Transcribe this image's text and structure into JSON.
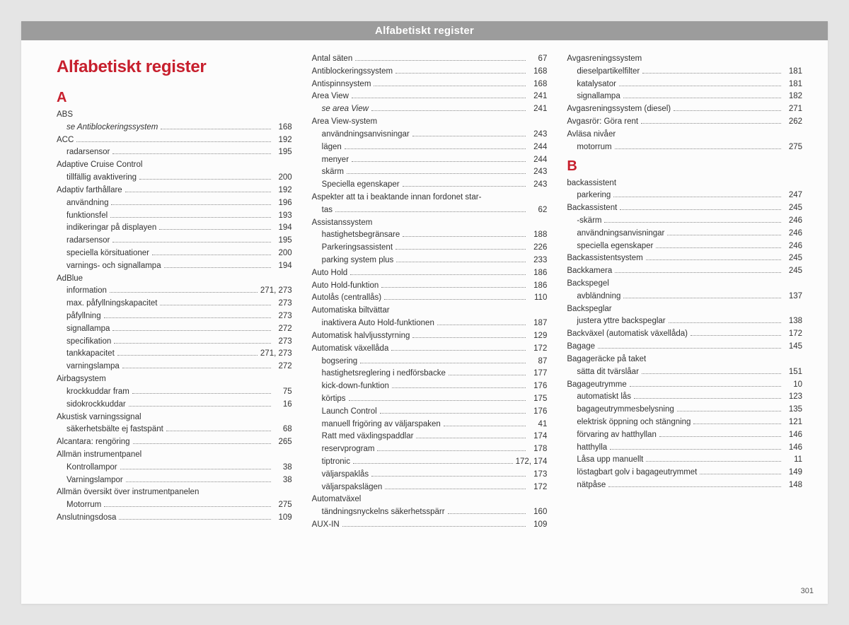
{
  "header": "Alfabetiskt register",
  "title": "Alfabetiskt register",
  "page_number": "301",
  "colors": {
    "page_bg": "#e5e5e5",
    "sheet_bg": "#fcfcfc",
    "bar_bg": "#9c9c9c",
    "bar_text": "#ffffff",
    "accent": "#c71f2d",
    "body_text": "#333333",
    "dots": "#888888"
  },
  "columns": [
    {
      "blocks": [
        {
          "type": "title"
        },
        {
          "type": "letter",
          "text": "A"
        },
        {
          "type": "entries",
          "items": [
            {
              "label": "ABS",
              "page": "",
              "nopage": true
            },
            {
              "label": "se Antiblockeringssystem",
              "page": "168",
              "sub": true,
              "italic": true
            },
            {
              "label": "ACC",
              "page": "192"
            },
            {
              "label": "radarsensor",
              "page": "195",
              "sub": true
            },
            {
              "label": "Adaptive Cruise Control",
              "page": "",
              "nopage": true
            },
            {
              "label": "tillfällig avaktivering",
              "page": "200",
              "sub": true
            },
            {
              "label": "Adaptiv farthållare",
              "page": "192"
            },
            {
              "label": "användning",
              "page": "196",
              "sub": true
            },
            {
              "label": "funktionsfel",
              "page": "193",
              "sub": true
            },
            {
              "label": "indikeringar på displayen",
              "page": "194",
              "sub": true
            },
            {
              "label": "radarsensor",
              "page": "195",
              "sub": true
            },
            {
              "label": "speciella körsituationer",
              "page": "200",
              "sub": true
            },
            {
              "label": "varnings- och signallampa",
              "page": "194",
              "sub": true
            },
            {
              "label": "AdBlue",
              "page": "",
              "nopage": true
            },
            {
              "label": "information",
              "page": "271, 273",
              "sub": true
            },
            {
              "label": "max. påfyllningskapacitet",
              "page": "273",
              "sub": true
            },
            {
              "label": "påfyllning",
              "page": "273",
              "sub": true
            },
            {
              "label": "signallampa",
              "page": "272",
              "sub": true
            },
            {
              "label": "specifikation",
              "page": "273",
              "sub": true
            },
            {
              "label": "tankkapacitet",
              "page": "271, 273",
              "sub": true
            },
            {
              "label": "varningslampa",
              "page": "272",
              "sub": true
            },
            {
              "label": "Airbagsystem",
              "page": "",
              "nopage": true
            },
            {
              "label": "krockkuddar fram",
              "page": "75",
              "sub": true
            },
            {
              "label": "sidokrockkuddar",
              "page": "16",
              "sub": true
            },
            {
              "label": "Akustisk varningssignal",
              "page": "",
              "nopage": true
            },
            {
              "label": "säkerhetsbälte ej fastspänt",
              "page": "68",
              "sub": true
            },
            {
              "label": "Alcantara: rengöring",
              "page": "265"
            },
            {
              "label": "Allmän instrumentpanel",
              "page": "",
              "nopage": true
            },
            {
              "label": "Kontrollampor",
              "page": "38",
              "sub": true
            },
            {
              "label": "Varningslampor",
              "page": "38",
              "sub": true
            },
            {
              "label": "Allmän översikt över instrumentpanelen",
              "page": "",
              "nopage": true
            },
            {
              "label": "Motorrum",
              "page": "275",
              "sub": true
            },
            {
              "label": "Anslutningsdosa",
              "page": "109"
            }
          ]
        }
      ]
    },
    {
      "blocks": [
        {
          "type": "entries",
          "items": [
            {
              "label": "Antal säten",
              "page": "67"
            },
            {
              "label": "Antiblockeringssystem",
              "page": "168"
            },
            {
              "label": "Antispinnsystem",
              "page": "168"
            },
            {
              "label": "Area View",
              "page": "241"
            },
            {
              "label": "se area View",
              "page": "241",
              "sub": true,
              "italic": true
            },
            {
              "label": "Area View-system",
              "page": "",
              "nopage": true
            },
            {
              "label": "användningsanvisningar",
              "page": "243",
              "sub": true
            },
            {
              "label": "lägen",
              "page": "244",
              "sub": true
            },
            {
              "label": "menyer",
              "page": "244",
              "sub": true
            },
            {
              "label": "skärm",
              "page": "243",
              "sub": true
            },
            {
              "label": "Speciella egenskaper",
              "page": "243",
              "sub": true
            },
            {
              "label": "Aspekter att ta i beaktande innan fordonet star-",
              "page": "",
              "nopage": true
            },
            {
              "label": "tas",
              "page": "62",
              "sub": true
            },
            {
              "label": "Assistanssystem",
              "page": "",
              "nopage": true
            },
            {
              "label": "hastighetsbegränsare",
              "page": "188",
              "sub": true
            },
            {
              "label": "Parkeringsassistent",
              "page": "226",
              "sub": true
            },
            {
              "label": "parking system plus",
              "page": "233",
              "sub": true
            },
            {
              "label": "Auto Hold",
              "page": "186"
            },
            {
              "label": "Auto Hold-funktion",
              "page": "186"
            },
            {
              "label": "Autolås (centrallås)",
              "page": "110"
            },
            {
              "label": "Automatiska biltvättar",
              "page": "",
              "nopage": true
            },
            {
              "label": "inaktivera Auto Hold-funktionen",
              "page": "187",
              "sub": true
            },
            {
              "label": "Automatisk halvljusstyrning",
              "page": "129"
            },
            {
              "label": "Automatisk växellåda",
              "page": "172"
            },
            {
              "label": "bogsering",
              "page": "87",
              "sub": true
            },
            {
              "label": "hastighetsreglering i nedförsbacke",
              "page": "177",
              "sub": true
            },
            {
              "label": "kick-down-funktion",
              "page": "176",
              "sub": true
            },
            {
              "label": "körtips",
              "page": "175",
              "sub": true
            },
            {
              "label": "Launch Control",
              "page": "176",
              "sub": true
            },
            {
              "label": "manuell frigöring av väljarspaken",
              "page": "41",
              "sub": true
            },
            {
              "label": "Ratt med växlingspaddlar",
              "page": "174",
              "sub": true
            },
            {
              "label": "reservprogram",
              "page": "178",
              "sub": true
            },
            {
              "label": "tiptronic",
              "page": "172, 174",
              "sub": true
            },
            {
              "label": "väljarspaklås",
              "page": "173",
              "sub": true
            },
            {
              "label": "väljarspakslägen",
              "page": "172",
              "sub": true
            },
            {
              "label": "Automatväxel",
              "page": "",
              "nopage": true
            },
            {
              "label": "tändningsnyckelns säkerhetsspärr",
              "page": "160",
              "sub": true
            },
            {
              "label": "AUX-IN",
              "page": "109"
            }
          ]
        }
      ]
    },
    {
      "blocks": [
        {
          "type": "entries",
          "items": [
            {
              "label": "Avgasreningssystem",
              "page": "",
              "nopage": true
            },
            {
              "label": "dieselpartikelfilter",
              "page": "181",
              "sub": true
            },
            {
              "label": "katalysator",
              "page": "181",
              "sub": true
            },
            {
              "label": "signallampa",
              "page": "182",
              "sub": true
            },
            {
              "label": "Avgasreningssystem (diesel)",
              "page": "271"
            },
            {
              "label": "Avgasrör: Göra rent",
              "page": "262"
            },
            {
              "label": "Avläsa nivåer",
              "page": "",
              "nopage": true
            },
            {
              "label": "motorrum",
              "page": "275",
              "sub": true
            }
          ]
        },
        {
          "type": "letter",
          "text": "B"
        },
        {
          "type": "entries",
          "items": [
            {
              "label": "backassistent",
              "page": "",
              "nopage": true
            },
            {
              "label": "parkering",
              "page": "247",
              "sub": true
            },
            {
              "label": "Backassistent",
              "page": "245"
            },
            {
              "label": "-skärm",
              "page": "246",
              "sub": true
            },
            {
              "label": "användningsanvisningar",
              "page": "246",
              "sub": true
            },
            {
              "label": "speciella egenskaper",
              "page": "246",
              "sub": true
            },
            {
              "label": "Backassistentsystem",
              "page": "245"
            },
            {
              "label": "Backkamera",
              "page": "245"
            },
            {
              "label": "Backspegel",
              "page": "",
              "nopage": true
            },
            {
              "label": "avbländning",
              "page": "137",
              "sub": true
            },
            {
              "label": "Backspeglar",
              "page": "",
              "nopage": true
            },
            {
              "label": "justera yttre backspeglar",
              "page": "138",
              "sub": true
            },
            {
              "label": "Backväxel (automatisk växellåda)",
              "page": "172"
            },
            {
              "label": "Bagage",
              "page": "145"
            },
            {
              "label": "Bagageräcke på taket",
              "page": "",
              "nopage": true
            },
            {
              "label": "sätta dit tvärslåar",
              "page": "151",
              "sub": true
            },
            {
              "label": "Bagageutrymme",
              "page": "10"
            },
            {
              "label": "automatiskt lås",
              "page": "123",
              "sub": true
            },
            {
              "label": "bagageutrymmesbelysning",
              "page": "135",
              "sub": true
            },
            {
              "label": "elektrisk öppning och stängning",
              "page": "121",
              "sub": true
            },
            {
              "label": "förvaring av hatthyllan",
              "page": "146",
              "sub": true
            },
            {
              "label": "hatthylla",
              "page": "146",
              "sub": true
            },
            {
              "label": "Låsa upp manuellt",
              "page": "11",
              "sub": true
            },
            {
              "label": "löstagbart golv i bagageutrymmet",
              "page": "149",
              "sub": true
            },
            {
              "label": "nätpåse",
              "page": "148",
              "sub": true
            }
          ]
        }
      ]
    }
  ]
}
